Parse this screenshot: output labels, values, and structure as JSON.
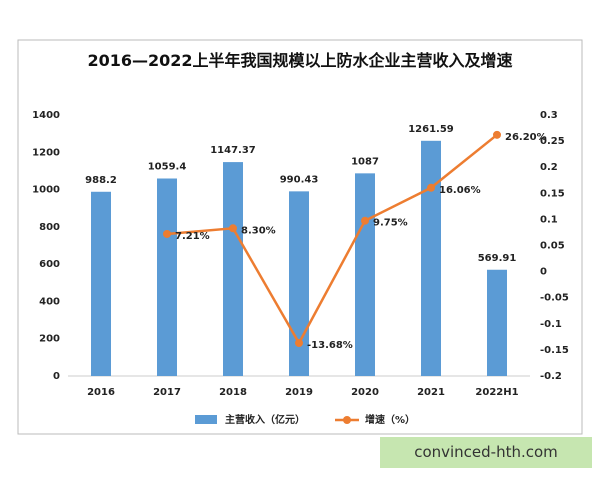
{
  "chart_data": {
    "type": "bar_line",
    "title": "2016—2022上半年我国规模以上防水企业主营收入及增速",
    "categories": [
      "2016",
      "2017",
      "2018",
      "2019",
      "2020",
      "2021",
      "2022H1"
    ],
    "series": [
      {
        "name": "主营收入（亿元）",
        "type": "bar",
        "color": "#5b9bd5",
        "values": [
          988.2,
          1059.4,
          1147.37,
          990.43,
          1087,
          1261.59,
          569.91
        ]
      },
      {
        "name": "增速（%）",
        "type": "line",
        "axis": "y2",
        "color": "#ed7d31",
        "values": [
          null,
          0.0721,
          0.083,
          -0.1368,
          0.0975,
          0.1606,
          0.262
        ],
        "value_labels": [
          null,
          "7.21%",
          "8.30%",
          "-13.68%",
          "9.75%",
          "16.06%",
          "26.20%"
        ]
      }
    ],
    "ylim": [
      0,
      1400
    ],
    "yticks": [
      0,
      200,
      400,
      600,
      800,
      1000,
      1200,
      1400
    ],
    "y2lim": [
      -0.2,
      0.3
    ],
    "y2ticks": [
      -0.2,
      -0.15,
      -0.1,
      -0.05,
      0,
      0.05,
      0.1,
      0.15,
      0.2,
      0.25,
      0.3
    ],
    "grid": false,
    "legend": "bottom"
  },
  "badge": "convinced-hth.com"
}
